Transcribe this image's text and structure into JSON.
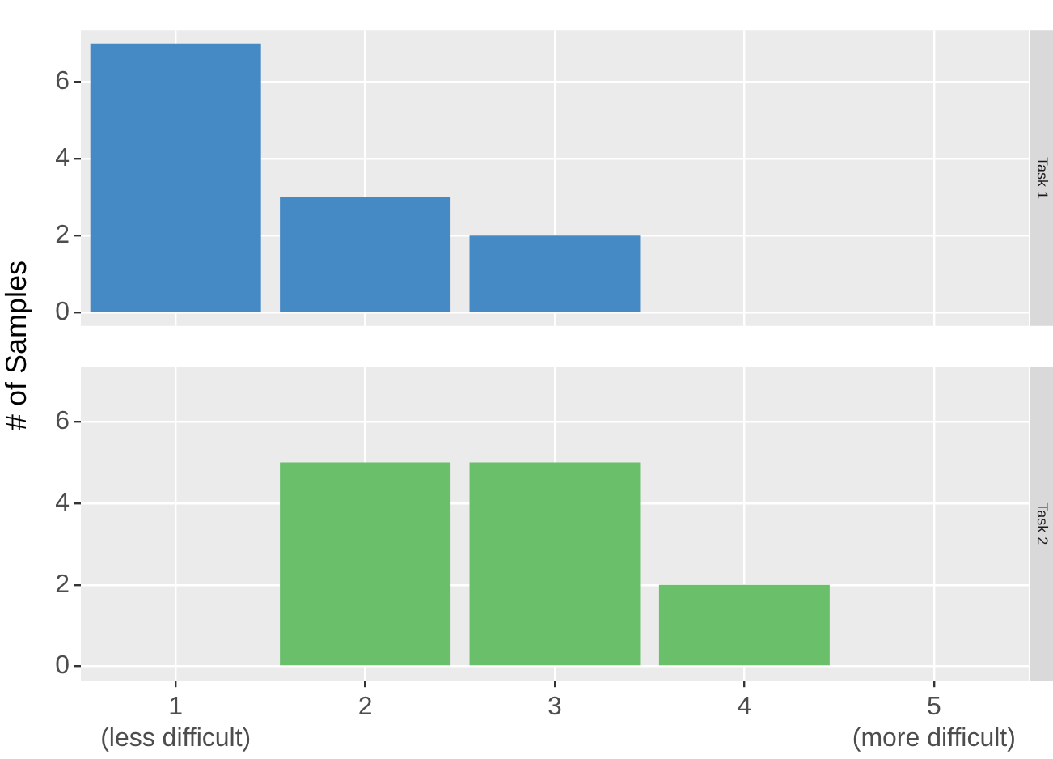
{
  "chart_data": [
    {
      "type": "bar",
      "title": "Task 1",
      "ylabel": "# of Samples",
      "categories": [
        null,
        null,
        null,
        null,
        null
      ],
      "series": [
        {
          "color": "#4589c5",
          "values": [
            7,
            3,
            2,
            0,
            0
          ]
        }
      ],
      "ylim": [
        -0.35,
        7.35
      ],
      "yticks": [
        0,
        2,
        4,
        6
      ],
      "grid": true,
      "tick_labels": "y"
    },
    {
      "type": "bar",
      "title": "Task 2",
      "categories": [
        "1\n(less difficult)",
        "2",
        "3",
        "4",
        "5\n(more difficult)"
      ],
      "series": [
        {
          "color": "#6abf6b",
          "values": [
            0,
            5,
            5,
            2,
            0
          ]
        }
      ],
      "ylim": [
        -0.35,
        7.35
      ],
      "yticks": [
        0,
        2,
        4,
        6
      ],
      "grid": true
    }
  ]
}
